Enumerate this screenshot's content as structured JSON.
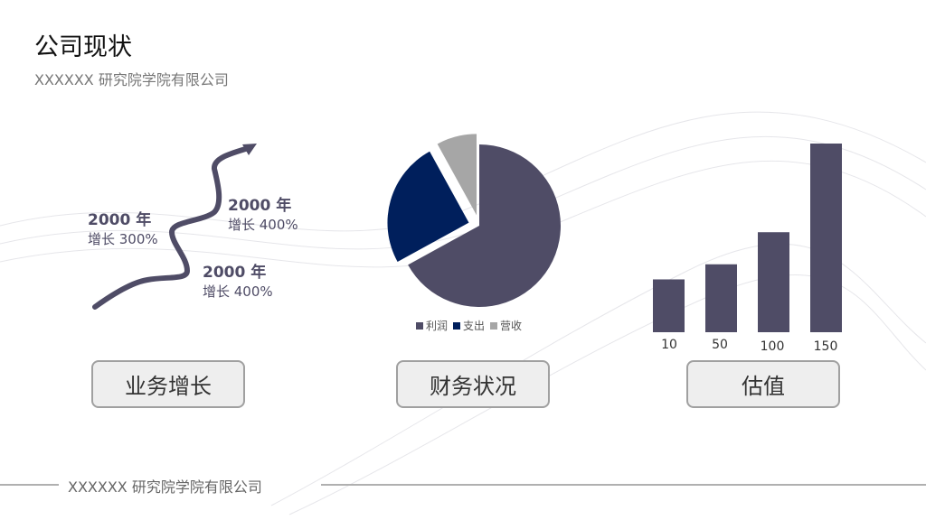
{
  "header": {
    "title": "公司现状",
    "subtitle": "XXXXXX 研究院学院有限公司"
  },
  "growth": {
    "items": [
      {
        "year": "2000 年",
        "growth": "增长 300%"
      },
      {
        "year": "2000 年",
        "growth": "增长 400%"
      },
      {
        "year": "2000 年",
        "growth": "增长 400%"
      }
    ]
  },
  "buttons": {
    "growth": "业务增长",
    "finance": "财务状况",
    "valuation": "估值"
  },
  "footer": {
    "text": "XXXXXX 研究院学院有限公司"
  },
  "colors": {
    "primary": "#4f4c66",
    "navy": "#001f5c",
    "gray": "#a6a6a6"
  },
  "chart_data": [
    {
      "type": "pie",
      "labels": [
        "利润",
        "支出",
        "营收"
      ],
      "values": [
        67,
        25,
        8
      ],
      "colors": [
        "#4f4c66",
        "#001f5c",
        "#a6a6a6"
      ],
      "exploded": [
        "支出",
        "营收"
      ],
      "legend": "bottom"
    },
    {
      "type": "bar",
      "categories": [
        "10",
        "50",
        "100",
        "150"
      ],
      "values": [
        28,
        36,
        53,
        100
      ],
      "ylim": [
        0,
        100
      ],
      "color": "#4f4c66",
      "grid": false
    }
  ]
}
